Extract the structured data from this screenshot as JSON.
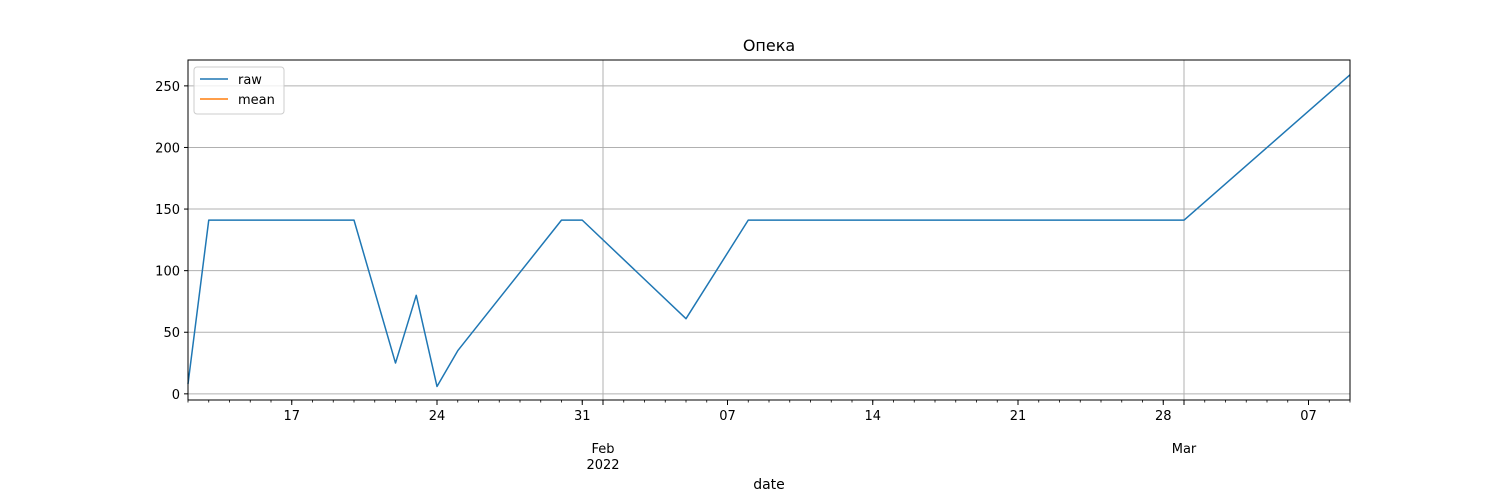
{
  "chart_data": {
    "type": "line",
    "title": "Опека",
    "xlabel": "date",
    "ylabel": "",
    "ylim": [
      -5,
      271
    ],
    "xlim": [
      "2022-01-12",
      "2022-03-09"
    ],
    "grid": true,
    "legend": {
      "position": "top-left",
      "entries": [
        "raw",
        "mean"
      ]
    },
    "series": [
      {
        "name": "raw",
        "color": "#1f77b4",
        "points": [
          [
            "2022-01-12",
            8
          ],
          [
            "2022-01-13",
            141
          ],
          [
            "2022-01-20",
            141
          ],
          [
            "2022-01-22",
            25
          ],
          [
            "2022-01-23",
            80
          ],
          [
            "2022-01-24",
            6
          ],
          [
            "2022-01-25",
            35
          ],
          [
            "2022-01-30",
            141
          ],
          [
            "2022-01-31",
            141
          ],
          [
            "2022-02-05",
            61
          ],
          [
            "2022-02-08",
            141
          ],
          [
            "2022-03-01",
            141
          ],
          [
            "2022-03-09",
            259
          ]
        ]
      },
      {
        "name": "mean",
        "color": "#ff7f0e",
        "points": []
      }
    ],
    "y_ticks": [
      0,
      50,
      100,
      150,
      200,
      250
    ],
    "x_major_ticks": [
      {
        "date": "2022-01-17",
        "label": "17"
      },
      {
        "date": "2022-01-24",
        "label": "24"
      },
      {
        "date": "2022-01-31",
        "label": "31"
      },
      {
        "date": "2022-02-07",
        "label": "07"
      },
      {
        "date": "2022-02-14",
        "label": "14"
      },
      {
        "date": "2022-02-21",
        "label": "21"
      },
      {
        "date": "2022-02-28",
        "label": "28"
      },
      {
        "date": "2022-03-07",
        "label": "07"
      }
    ],
    "x_month_labels": [
      {
        "date": "2022-02-01",
        "label": "Feb",
        "sublabel": "2022"
      },
      {
        "date": "2022-03-01",
        "label": "Mar",
        "sublabel": ""
      }
    ],
    "x_gridlines": [
      "2022-02-01",
      "2022-03-01"
    ]
  }
}
